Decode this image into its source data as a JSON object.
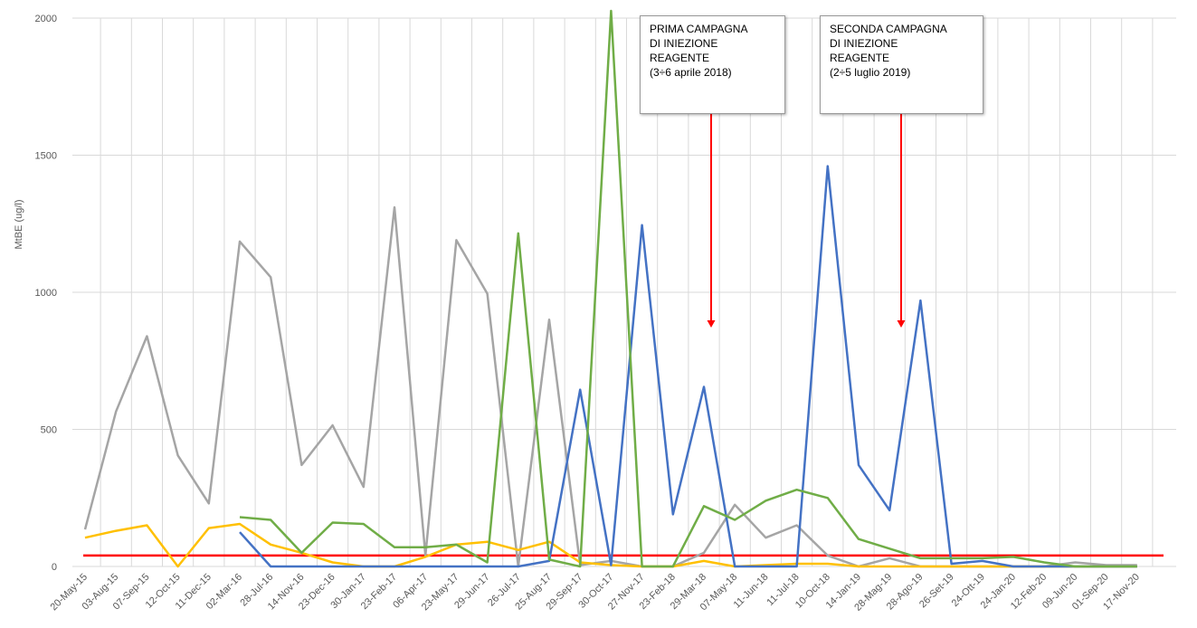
{
  "chart_data": {
    "type": "line",
    "ylabel": "MtBE (ug/l)",
    "xlabel": "",
    "ylim": [
      0,
      2000
    ],
    "yticks": [
      0,
      500,
      1000,
      1500,
      2000
    ],
    "grid": true,
    "categories": [
      "20-May-15",
      "03-Aug-15",
      "07-Sep-15",
      "12-Oct-15",
      "11-Dec-15",
      "02-Mar-16",
      "28-Jul-16",
      "14-Nov-16",
      "23-Dec-16",
      "30-Jan-17",
      "23-Feb-17",
      "06-Apr-17",
      "23-May-17",
      "29-Jun-17",
      "26-Jul-17",
      "25-Aug-17",
      "29-Sep-17",
      "30-Oct-17",
      "27-Nov-17",
      "23-Feb-18",
      "29-Mar-18",
      "07-May-18",
      "11-Jun-18",
      "11-Jul-18",
      "10-Oct-18",
      "14-Jan-19",
      "28-Mag-19",
      "28-Ago-19",
      "26-Set-19",
      "24-Ott-19",
      "24-Jan-20",
      "12-Feb-20",
      "09-Jun-20",
      "01-Sep-20",
      "17-Nov-20"
    ],
    "series": [
      {
        "color": "#a5a5a5",
        "values": [
          135,
          565,
          840,
          405,
          230,
          1185,
          1055,
          370,
          515,
          290,
          1310,
          40,
          1190,
          995,
          0,
          900,
          5,
          20,
          0,
          0,
          50,
          225,
          105,
          150,
          40,
          0,
          30,
          0,
          0,
          0,
          0,
          0,
          15,
          5,
          5
        ]
      },
      {
        "color": "#ffc000",
        "values": [
          105,
          130,
          150,
          0,
          140,
          155,
          80,
          50,
          15,
          0,
          0,
          35,
          80,
          90,
          60,
          90,
          15,
          5,
          0,
          0,
          20,
          0,
          5,
          10,
          10,
          0,
          0,
          0,
          0,
          0,
          0,
          0,
          0,
          0,
          0
        ]
      },
      {
        "color": "#4472c4",
        "values": [
          null,
          null,
          null,
          null,
          null,
          125,
          0,
          0,
          0,
          0,
          0,
          0,
          0,
          0,
          0,
          20,
          645,
          5,
          1245,
          190,
          655,
          0,
          0,
          0,
          1460,
          370,
          205,
          970,
          10,
          20,
          0,
          0,
          0,
          0,
          0
        ]
      },
      {
        "color": "#70ad47",
        "values": [
          null,
          null,
          null,
          null,
          null,
          180,
          170,
          50,
          160,
          155,
          70,
          70,
          80,
          15,
          1215,
          25,
          0,
          2050,
          0,
          0,
          220,
          170,
          240,
          280,
          250,
          100,
          65,
          30,
          30,
          30,
          35,
          15,
          0,
          0,
          0
        ]
      }
    ],
    "threshold": {
      "value": 40,
      "color": "#ff0000"
    },
    "annotations": [
      {
        "lines": [
          "PRIMA CAMPAGNA",
          "DI INIEZIONE",
          "REAGENTE",
          "(3÷6 aprile 2018)"
        ],
        "arrow_color": "#ff0000"
      },
      {
        "lines": [
          "SECONDA CAMPAGNA",
          "DI INIEZIONE",
          "REAGENTE",
          "(2÷5 luglio 2019)"
        ],
        "arrow_color": "#ff0000"
      }
    ]
  }
}
